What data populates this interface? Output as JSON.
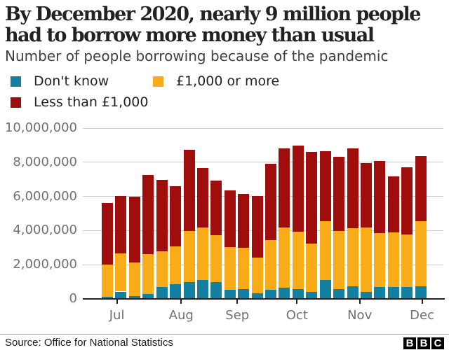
{
  "title_line1": "By December 2020, nearly 9 million people",
  "title_line2": "had to borrow more money than usual",
  "subtitle": "Number of people borrowing because of the pandemic",
  "legend": [
    {
      "label": "Don't know",
      "color": "#1380A1"
    },
    {
      "label": "£1,000 or more",
      "color": "#FAAB18"
    },
    {
      "label": "Less than £1,000",
      "color": "#9F0D0D"
    }
  ],
  "source": "Source: Office for National Statistics",
  "logo": {
    "letters": [
      "B",
      "B",
      "C"
    ]
  },
  "chart_data": {
    "type": "bar",
    "stacked": true,
    "title": "By December 2020, nearly 9 million people had to borrow more money than usual",
    "subtitle": "Number of people borrowing because of the pandemic",
    "x_tick_labels": [
      "Jul",
      "Aug",
      "Sep",
      "Oct",
      "Nov",
      "Dec"
    ],
    "x_tick_positions": [
      0.7,
      5.42,
      9.54,
      13.92,
      18.52,
      23.1
    ],
    "y_ticks": [
      0,
      2000000,
      4000000,
      6000000,
      8000000,
      10000000
    ],
    "y_tick_labels": [
      "0",
      "2,000,000",
      "4,000,000",
      "6,000,000",
      "8,000,000",
      "10,000,000"
    ],
    "ylim": [
      0,
      10000000
    ],
    "grid": true,
    "legend_position": "top",
    "series": [
      {
        "name": "Don't know",
        "color": "#1380A1",
        "values": [
          120000,
          430000,
          180000,
          270000,
          700000,
          870000,
          1000000,
          1110000,
          980000,
          540000,
          570000,
          320000,
          540000,
          660000,
          590000,
          430000,
          1110000,
          570000,
          750000,
          410000,
          700000,
          700000,
          700000,
          730000
        ]
      },
      {
        "name": "£1,000 or more",
        "color": "#FAAB18",
        "values": [
          1890000,
          2250000,
          1960000,
          2350000,
          2080000,
          2220000,
          2980000,
          3050000,
          2730000,
          2490000,
          2430000,
          2090000,
          2900000,
          3530000,
          3350000,
          2800000,
          3420000,
          3410000,
          3370000,
          3780000,
          3150000,
          3210000,
          3080000,
          3820000
        ]
      },
      {
        "name": "Less than £1,000",
        "color": "#9F0D0D",
        "values": [
          3590000,
          3350000,
          3850000,
          4640000,
          4180000,
          3510000,
          4740000,
          3510000,
          3210000,
          3310000,
          3160000,
          3630000,
          4470000,
          4640000,
          5050000,
          5390000,
          4120000,
          4330000,
          4680000,
          3750000,
          4230000,
          3280000,
          3920000,
          3820000
        ]
      }
    ]
  }
}
